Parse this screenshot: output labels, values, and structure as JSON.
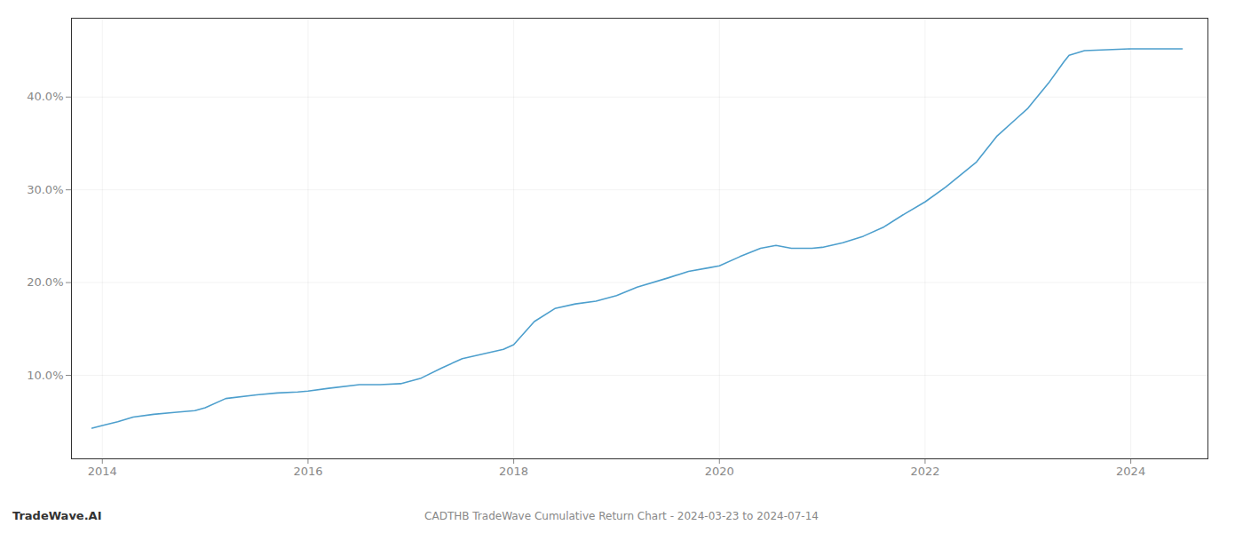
{
  "chart_data": {
    "type": "line",
    "title": "CADTHB TradeWave Cumulative Return Chart - 2024-03-23 to 2024-07-14",
    "annotations": [
      "TradeWave.AI"
    ],
    "color": "#4d9fcd",
    "grid": true,
    "x": [
      2013.9,
      2014.0,
      2014.15,
      2014.3,
      2014.5,
      2014.7,
      2014.9,
      2015.0,
      2015.2,
      2015.5,
      2015.7,
      2015.9,
      2016.0,
      2016.2,
      2016.5,
      2016.7,
      2016.9,
      2017.1,
      2017.3,
      2017.5,
      2017.7,
      2017.9,
      2018.0,
      2018.2,
      2018.4,
      2018.6,
      2018.8,
      2019.0,
      2019.2,
      2019.5,
      2019.7,
      2019.9,
      2020.0,
      2020.2,
      2020.4,
      2020.55,
      2020.7,
      2020.9,
      2021.0,
      2021.2,
      2021.4,
      2021.6,
      2021.8,
      2022.0,
      2022.2,
      2022.5,
      2022.7,
      2022.9,
      2023.0,
      2023.2,
      2023.35,
      2023.4,
      2023.55,
      2024.0,
      2024.5
    ],
    "values": [
      0.043,
      0.046,
      0.05,
      0.055,
      0.058,
      0.06,
      0.062,
      0.065,
      0.075,
      0.079,
      0.081,
      0.082,
      0.083,
      0.086,
      0.09,
      0.09,
      0.091,
      0.097,
      0.108,
      0.118,
      0.123,
      0.128,
      0.133,
      0.158,
      0.172,
      0.177,
      0.18,
      0.186,
      0.195,
      0.205,
      0.212,
      0.216,
      0.218,
      0.228,
      0.237,
      0.24,
      0.237,
      0.237,
      0.238,
      0.243,
      0.25,
      0.26,
      0.274,
      0.287,
      0.303,
      0.33,
      0.358,
      0.378,
      0.388,
      0.415,
      0.438,
      0.445,
      0.45,
      0.452,
      0.452
    ],
    "xlim": [
      2013.7,
      2024.75
    ],
    "xticks": [
      2014,
      2016,
      2018,
      2020,
      2022,
      2024
    ],
    "ylim": [
      0.01,
      0.485
    ],
    "yticks": [
      {
        "value": 0.1,
        "label": "10.0%"
      },
      {
        "value": 0.2,
        "label": "20.0%"
      },
      {
        "value": 0.3,
        "label": "30.0%"
      },
      {
        "value": 0.4,
        "label": "40.0%"
      }
    ]
  }
}
